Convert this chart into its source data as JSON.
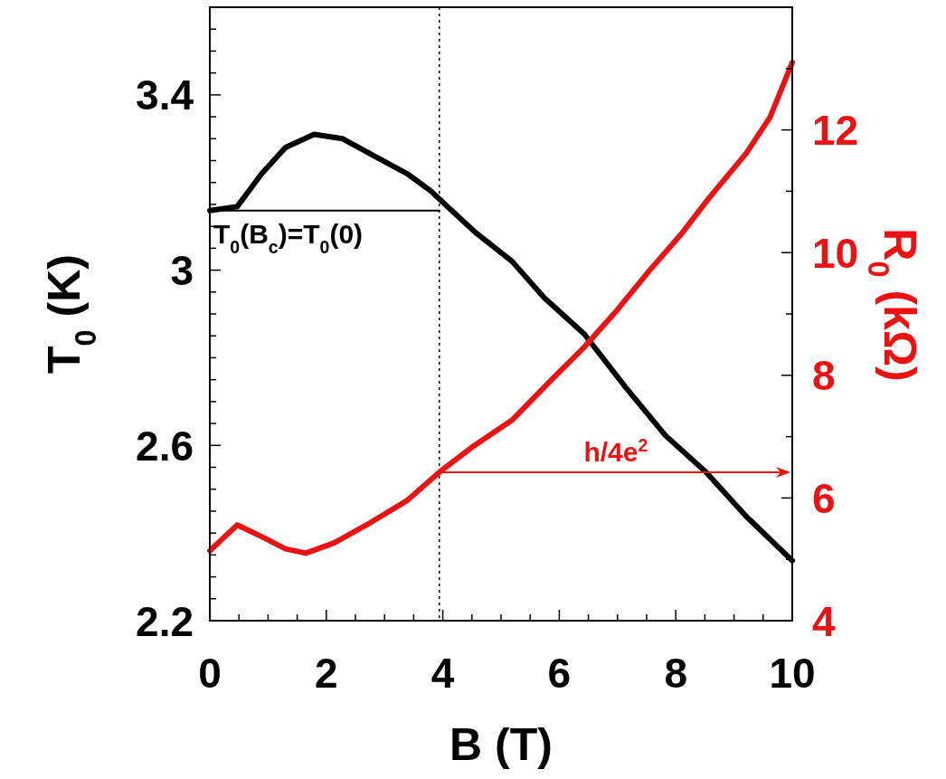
{
  "chart_data": {
    "type": "line",
    "xlabel": "B (T)",
    "ylabel": "T$_{0}$ (K)",
    "y2label": "R$_{0}$ (kΩ)",
    "xlim": [
      0,
      10
    ],
    "ylim": [
      2.2,
      3.6
    ],
    "y2lim": [
      4,
      14
    ],
    "xticks": [
      0,
      {
        "value": 0.5,
        "label": null
      },
      {
        "value": 1,
        "label": null
      },
      {
        "value": 1.5,
        "label": null
      },
      2,
      {
        "value": 2.5,
        "label": null
      },
      {
        "value": 3,
        "label": null
      },
      {
        "value": 3.5,
        "label": null
      },
      4,
      {
        "value": 4.5,
        "label": null
      },
      {
        "value": 5,
        "label": null
      },
      {
        "value": 5.5,
        "label": null
      },
      6,
      {
        "value": 6.5,
        "label": null
      },
      {
        "value": 7,
        "label": null
      },
      {
        "value": 7.5,
        "label": null
      },
      8,
      {
        "value": 8.5,
        "label": null
      },
      {
        "value": 9,
        "label": null
      },
      {
        "value": 9.5,
        "label": null
      },
      10
    ],
    "yticks": [
      2.2,
      {
        "value": 2.25,
        "label": null
      },
      {
        "value": 2.3,
        "label": null
      },
      {
        "value": 2.35,
        "label": null
      },
      {
        "value": 2.4,
        "label": null
      },
      {
        "value": 2.45,
        "label": null
      },
      {
        "value": 2.5,
        "label": null
      },
      {
        "value": 2.55,
        "label": null
      },
      2.6,
      {
        "value": 2.65,
        "label": null
      },
      {
        "value": 2.7,
        "label": null
      },
      {
        "value": 2.75,
        "label": null
      },
      {
        "value": 2.8,
        "label": null
      },
      {
        "value": 2.85,
        "label": null
      },
      {
        "value": 2.9,
        "label": null
      },
      {
        "value": 2.95,
        "label": null
      },
      3,
      {
        "value": 3.05,
        "label": null
      },
      {
        "value": 3.1,
        "label": null
      },
      {
        "value": 3.15,
        "label": null
      },
      {
        "value": 3.2,
        "label": null
      },
      {
        "value": 3.25,
        "label": null
      },
      {
        "value": 3.3,
        "label": null
      },
      {
        "value": 3.35,
        "label": null
      },
      3.4,
      {
        "value": 3.45,
        "label": null
      },
      {
        "value": 3.5,
        "label": null
      },
      {
        "value": 3.55,
        "label": null
      },
      {
        "value": 3.6,
        "label": null
      }
    ],
    "y2ticks": [
      4,
      {
        "value": 5,
        "label": null
      },
      6,
      {
        "value": 7,
        "label": null
      },
      8,
      {
        "value": 9,
        "label": null
      },
      10,
      {
        "value": 11,
        "label": null
      },
      12,
      {
        "value": 13,
        "label": null
      },
      {
        "value": 14,
        "label": null
      }
    ],
    "ref_lines": [
      {
        "axis": "x",
        "value": 3.94,
        "color": "#000000",
        "line_style": "dotted"
      }
    ],
    "series": [
      {
        "color": "#000000",
        "x": [
          0,
          0.47,
          0.89,
          1.3,
          1.79,
          2.28,
          2.83,
          3.39,
          3.8,
          4.08,
          4.57,
          5.19,
          5.74,
          6.43,
          7.13,
          7.82,
          8.51,
          9.21,
          10
        ],
        "values": [
          3.136,
          3.145,
          3.22,
          3.28,
          3.31,
          3.3,
          3.26,
          3.22,
          3.18,
          3.145,
          3.085,
          3.02,
          2.937,
          2.854,
          2.734,
          2.623,
          2.54,
          2.438,
          2.337
        ]
      },
      {
        "color": "#ee1111",
        "axis": "y2",
        "x": [
          0,
          0.47,
          0.89,
          1.3,
          1.65,
          2.14,
          2.69,
          3.39,
          3.94,
          4.49,
          5.19,
          5.88,
          6.43,
          6.99,
          7.55,
          8.1,
          8.58,
          9.21,
          9.62,
          10
        ],
        "values": [
          5.14,
          5.56,
          5.37,
          5.17,
          5.1,
          5.27,
          5.56,
          5.96,
          6.42,
          6.82,
          7.27,
          7.94,
          8.46,
          9.06,
          9.71,
          10.31,
          10.9,
          11.62,
          12.21,
          13.1
        ]
      },
      {
        "name": "T$_{0}$(B$_{c}$)=T$_{0}$(0)",
        "color": "#000000",
        "x": [
          0,
          3.94
        ],
        "values": [
          3.136,
          3.136
        ]
      }
    ],
    "annotations": [
      "h/4e$^{2}$"
    ]
  }
}
